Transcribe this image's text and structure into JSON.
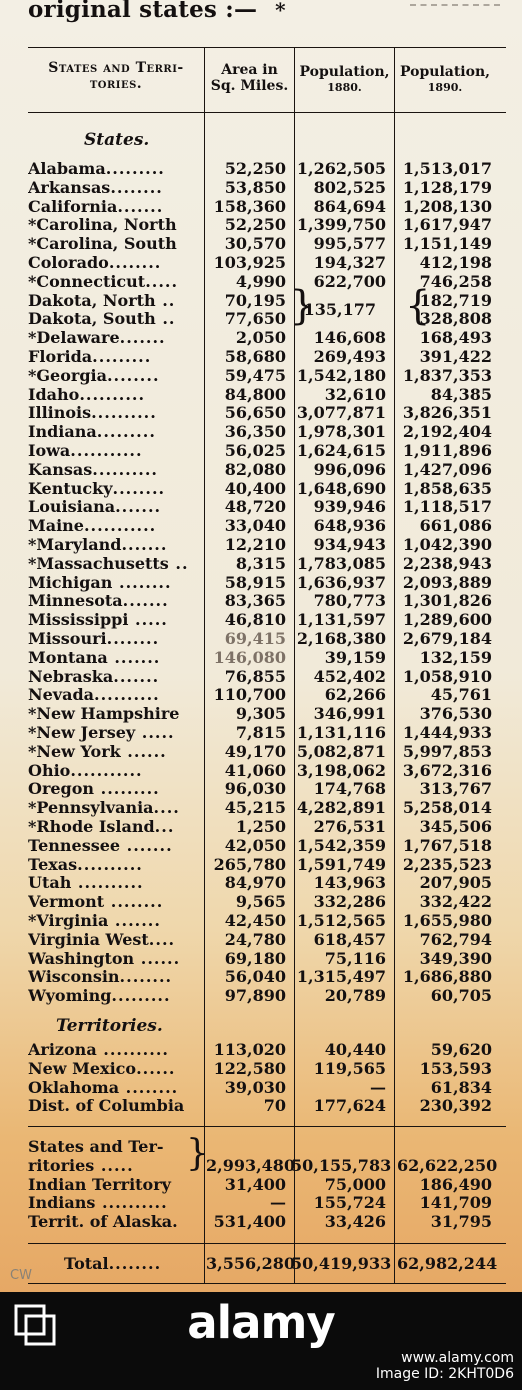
{
  "heading": {
    "text": "original states :—",
    "star": "*"
  },
  "columns": {
    "name_line1": "States and Terri-",
    "name_line2": "tories.",
    "area_line1": "Area in",
    "area_line2": "Sq. Miles.",
    "pop1880_line1": "Population,",
    "pop1880_line2": "1880.",
    "pop1890_line1": "Population,",
    "pop1890_line2": "1890."
  },
  "states_title": "States.",
  "territories_title": "Territories.",
  "states": [
    {
      "name": "Alabama",
      "dots": ".........",
      "area": "52,250",
      "p1880": "1,262,505",
      "p1890": "1,513,017"
    },
    {
      "name": "Arkansas",
      "dots": "........",
      "area": "53,850",
      "p1880": "802,525",
      "p1890": "1,128,179"
    },
    {
      "name": "California",
      "dots": ".......",
      "area": "158,360",
      "p1880": "864,694",
      "p1890": "1,208,130"
    },
    {
      "name": "*Carolina, North",
      "dots": "",
      "area": "52,250",
      "p1880": "1,399,750",
      "p1890": "1,617,947"
    },
    {
      "name": "*Carolina, South",
      "dots": "",
      "area": "30,570",
      "p1880": "995,577",
      "p1890": "1,151,149"
    },
    {
      "name": "Colorado",
      "dots": "........",
      "area": "103,925",
      "p1880": "194,327",
      "p1890": "412,198"
    },
    {
      "name": "*Connecticut",
      "dots": ".....",
      "area": "4,990",
      "p1880": "622,700",
      "p1890": "746,258"
    },
    {
      "name": "Dakota, North",
      "dots": " ..",
      "area": "70,195",
      "p1880": "",
      "p1890": "182,719"
    },
    {
      "name": "Dakota, South",
      "dots": " ..",
      "area": "77,650",
      "p1880": "135,177",
      "p1890": "328,808"
    },
    {
      "name": "*Delaware",
      "dots": ".......",
      "area": "2,050",
      "p1880": "146,608",
      "p1890": "168,493"
    },
    {
      "name": "Florida",
      "dots": ".........",
      "area": "58,680",
      "p1880": "269,493",
      "p1890": "391,422"
    },
    {
      "name": "*Georgia",
      "dots": "........",
      "area": "59,475",
      "p1880": "1,542,180",
      "p1890": "1,837,353"
    },
    {
      "name": "Idaho",
      "dots": "..........",
      "area": "84,800",
      "p1880": "32,610",
      "p1890": "84,385"
    },
    {
      "name": "Illinois",
      "dots": "..........",
      "area": "56,650",
      "p1880": "3,077,871",
      "p1890": "3,826,351"
    },
    {
      "name": "Indiana",
      "dots": ".........",
      "area": "36,350",
      "p1880": "1,978,301",
      "p1890": "2,192,404"
    },
    {
      "name": "Iowa",
      "dots": "...........",
      "area": "56,025",
      "p1880": "1,624,615",
      "p1890": "1,911,896"
    },
    {
      "name": "Kansas",
      "dots": "..........",
      "area": "82,080",
      "p1880": "996,096",
      "p1890": "1,427,096"
    },
    {
      "name": "Kentucky",
      "dots": "........",
      "area": "40,400",
      "p1880": "1,648,690",
      "p1890": "1,858,635"
    },
    {
      "name": "Louisiana",
      "dots": ".......",
      "area": "48,720",
      "p1880": "939,946",
      "p1890": "1,118,517"
    },
    {
      "name": "Maine",
      "dots": "...........",
      "area": "33,040",
      "p1880": "648,936",
      "p1890": "661,086"
    },
    {
      "name": "*Maryland",
      "dots": ".......",
      "area": "12,210",
      "p1880": "934,943",
      "p1890": "1,042,390"
    },
    {
      "name": "*Massachusetts",
      "dots": " ..",
      "area": "8,315",
      "p1880": "1,783,085",
      "p1890": "2,238,943"
    },
    {
      "name": "Michigan",
      "dots": " ........",
      "area": "58,915",
      "p1880": "1,636,937",
      "p1890": "2,093,889"
    },
    {
      "name": "Minnesota",
      "dots": ".......",
      "area": "83,365",
      "p1880": "780,773",
      "p1890": "1,301,826"
    },
    {
      "name": "Mississippi",
      "dots": " .....",
      "area": "46,810",
      "p1880": "1,131,597",
      "p1890": "1,289,600"
    },
    {
      "name": "Missouri",
      "dots": "........",
      "area": "69,415",
      "p1880": "2,168,380",
      "p1890": "2,679,184"
    },
    {
      "name": "Montana",
      "dots": " .......",
      "area": "146,080",
      "p1880": "39,159",
      "p1890": "132,159"
    },
    {
      "name": "Nebraska",
      "dots": ".......",
      "area": "76,855",
      "p1880": "452,402",
      "p1890": "1,058,910"
    },
    {
      "name": "Nevada",
      "dots": "..........",
      "area": "110,700",
      "p1880": "62,266",
      "p1890": "45,761"
    },
    {
      "name": "*New Hampshire",
      "dots": "",
      "area": "9,305",
      "p1880": "346,991",
      "p1890": "376,530"
    },
    {
      "name": "*New Jersey",
      "dots": " .....",
      "area": "7,815",
      "p1880": "1,131,116",
      "p1890": "1,444,933"
    },
    {
      "name": "*New York",
      "dots": " ......",
      "area": "49,170",
      "p1880": "5,082,871",
      "p1890": "5,997,853"
    },
    {
      "name": "Ohio",
      "dots": "...........",
      "area": "41,060",
      "p1880": "3,198,062",
      "p1890": "3,672,316"
    },
    {
      "name": "Oregon",
      "dots": " .........",
      "area": "96,030",
      "p1880": "174,768",
      "p1890": "313,767"
    },
    {
      "name": "*Pennsylvania",
      "dots": "....",
      "area": "45,215",
      "p1880": "4,282,891",
      "p1890": "5,258,014"
    },
    {
      "name": "*Rhode Island",
      "dots": "...",
      "area": "1,250",
      "p1880": "276,531",
      "p1890": "345,506"
    },
    {
      "name": "Tennessee",
      "dots": " .......",
      "area": "42,050",
      "p1880": "1,542,359",
      "p1890": "1,767,518"
    },
    {
      "name": "Texas",
      "dots": "..........",
      "area": "265,780",
      "p1880": "1,591,749",
      "p1890": "2,235,523"
    },
    {
      "name": "Utah",
      "dots": " ..........",
      "area": "84,970",
      "p1880": "143,963",
      "p1890": "207,905"
    },
    {
      "name": "Vermont",
      "dots": " ........",
      "area": "9,565",
      "p1880": "332,286",
      "p1890": "332,422"
    },
    {
      "name": "*Virginia",
      "dots": " .......",
      "area": "42,450",
      "p1880": "1,512,565",
      "p1890": "1,655,980"
    },
    {
      "name": "Virginia West",
      "dots": "....",
      "area": "24,780",
      "p1880": "618,457",
      "p1890": "762,794"
    },
    {
      "name": "Washington",
      "dots": " ......",
      "area": "69,180",
      "p1880": "75,116",
      "p1890": "349,390"
    },
    {
      "name": "Wisconsin",
      "dots": "........",
      "area": "56,040",
      "p1880": "1,315,497",
      "p1890": "1,686,880"
    },
    {
      "name": "Wyoming",
      "dots": ".........",
      "area": "97,890",
      "p1880": "20,789",
      "p1890": "60,705"
    }
  ],
  "territories": [
    {
      "name": "Arizona",
      "dots": " ..........",
      "area": "113,020",
      "p1880": "40,440",
      "p1890": "59,620"
    },
    {
      "name": "New Mexico",
      "dots": "......",
      "area": "122,580",
      "p1880": "119,565",
      "p1890": "153,593"
    },
    {
      "name": "Oklahoma",
      "dots": " ........",
      "area": "39,030",
      "p1880": "—",
      "p1890": "61,834"
    },
    {
      "name": "Dist. of Columbia",
      "dots": "",
      "area": "70",
      "p1880": "177,624",
      "p1890": "230,392"
    }
  ],
  "summary": [
    {
      "name": "States and Ter-",
      "dots": "",
      "area": "",
      "p1880": "",
      "p1890": ""
    },
    {
      "name": "ritories",
      "dots": " .....",
      "area": "2,993,480",
      "p1880": "50,155,783",
      "p1890": "62,622,250"
    },
    {
      "name": "Indian Territory",
      "dots": "",
      "area": "31,400",
      "p1880": "75,000",
      "p1890": "186,490"
    },
    {
      "name": "Indians",
      "dots": " ..........",
      "area": "—",
      "p1880": "155,724",
      "p1890": "141,709"
    },
    {
      "name": "Territ. of Alaska.",
      "dots": "",
      "area": "531,400",
      "p1880": "33,426",
      "p1890": "31,795"
    }
  ],
  "total": {
    "name": "Total",
    "dots": "........",
    "area": "3,556,280",
    "p1880": "50,419,933",
    "p1890": "62,982,244"
  },
  "initials": "CW",
  "watermark": {
    "brand": "alamy",
    "url": "www.alamy.com",
    "image_id": "Image ID: 2KHT0D6"
  }
}
